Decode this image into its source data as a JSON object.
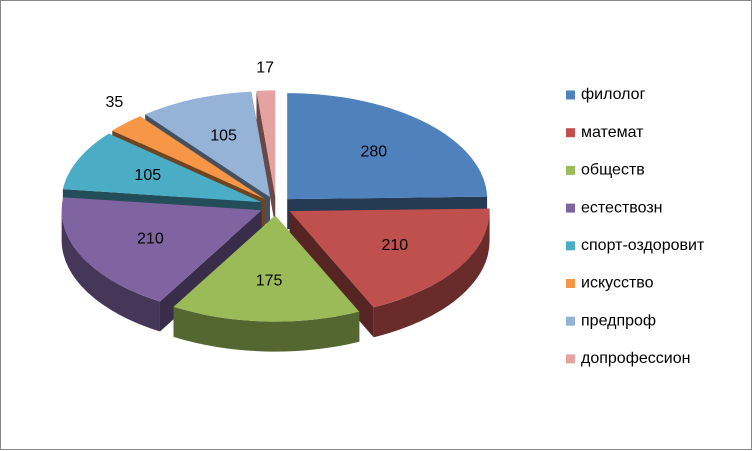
{
  "chart_data": {
    "type": "pie",
    "categories": [
      "филолог",
      "математ",
      "обществ",
      "естествозн",
      "спорт-оздоровит",
      "искусство",
      "предпроф",
      "допрофессион"
    ],
    "values": [
      280,
      210,
      175,
      210,
      105,
      35,
      105,
      17
    ],
    "colors": [
      "#4f81bd",
      "#c0504d",
      "#9bbb59",
      "#8064a2",
      "#4bacc6",
      "#f79646",
      "#95b3d7",
      "#e6a2a0"
    ],
    "legend": "right"
  }
}
